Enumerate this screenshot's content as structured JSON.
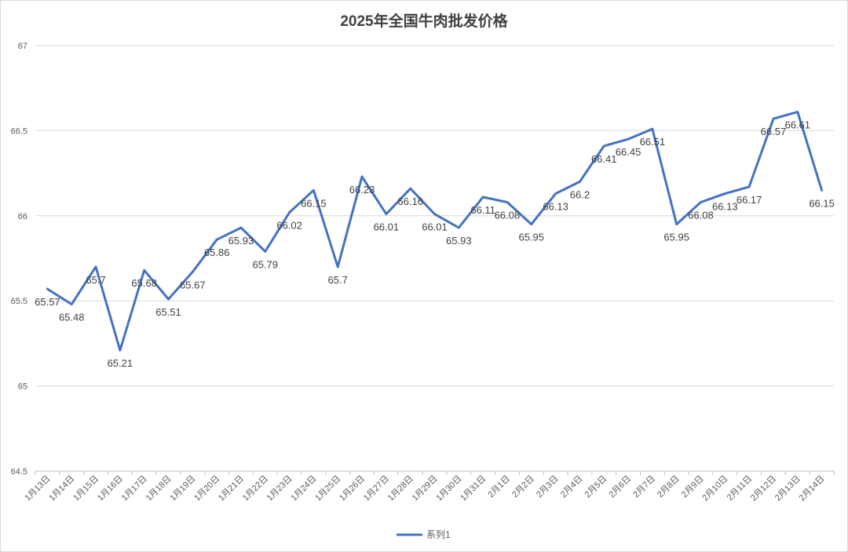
{
  "chart_data": {
    "type": "line",
    "title": "2025年全国牛肉批发价格",
    "xlabel": "",
    "ylabel": "",
    "ylim": [
      64.5,
      67
    ],
    "yticks": [
      "64.5",
      "65",
      "65.5",
      "66",
      "66.5",
      "67"
    ],
    "grid": true,
    "legend_position": "bottom",
    "categories": [
      "1月13日",
      "1月14日",
      "1月15日",
      "1月16日",
      "1月17日",
      "1月18日",
      "1月19日",
      "1月20日",
      "1月21日",
      "1月22日",
      "1月23日",
      "1月24日",
      "1月25日",
      "1月26日",
      "1月27日",
      "1月28日",
      "1月29日",
      "1月30日",
      "1月31日",
      "2月1日",
      "2月2日",
      "2月3日",
      "2月4日",
      "2月5日",
      "2月6日",
      "2月7日",
      "2月8日",
      "2月9日",
      "2月10日",
      "2月11日",
      "2月12日",
      "2月13日",
      "2月14日"
    ],
    "series": [
      {
        "name": "系列1",
        "color": "#4472c4",
        "values": [
          65.57,
          65.48,
          65.7,
          65.21,
          65.68,
          65.51,
          65.67,
          65.86,
          65.93,
          65.79,
          66.02,
          66.15,
          65.7,
          66.23,
          66.01,
          66.16,
          66.01,
          65.93,
          66.11,
          66.08,
          65.95,
          66.13,
          66.2,
          66.41,
          66.45,
          66.51,
          65.95,
          66.08,
          66.13,
          66.17,
          66.57,
          66.61,
          66.15
        ],
        "labels": [
          "65.57",
          "65.48",
          "65.7",
          "65.21",
          "65.68",
          "65.51",
          "65.67",
          "65.86",
          "65.93",
          "65.79",
          "66.02",
          "66.15",
          "65.7",
          "66.23",
          "66.01",
          "66.16",
          "66.01",
          "65.93",
          "66.11",
          "66.08",
          "65.95",
          "66.13",
          "66.2",
          "66.41",
          "66.45",
          "66.51",
          "65.95",
          "66.08",
          "66.13",
          "66.17",
          "66.57",
          "66.61",
          "66.15"
        ]
      }
    ]
  }
}
